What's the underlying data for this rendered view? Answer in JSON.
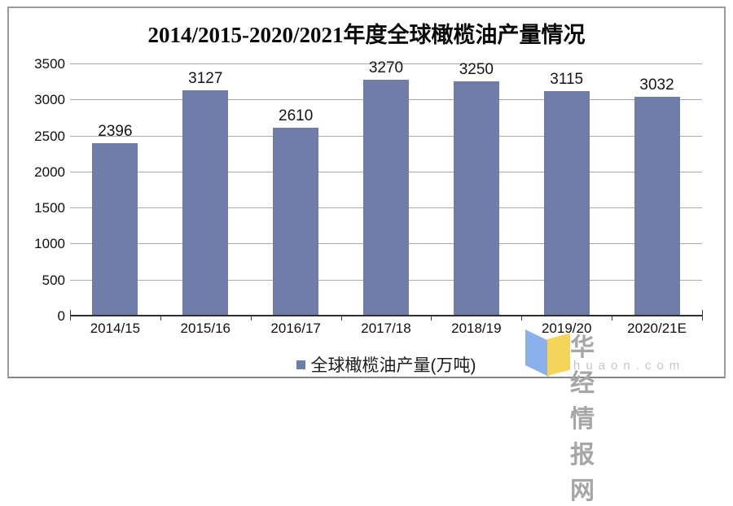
{
  "title": "2014/2015-2020/2021年度全球橄榄油产量情况",
  "chart_data": {
    "type": "bar",
    "title": "2014/2015-2020/2021年度全球橄榄油产量情况",
    "categories": [
      "2014/15",
      "2015/16",
      "2016/17",
      "2017/18",
      "2018/19",
      "2019/20",
      "2020/21E"
    ],
    "values": [
      2396,
      3127,
      2610,
      3270,
      3250,
      3115,
      3032
    ],
    "series_name": "全球橄榄油产量(万吨)",
    "data_labels": [
      2396,
      3127,
      2610,
      3270,
      3250,
      3115,
      3032
    ],
    "xlabel": "",
    "ylabel": "",
    "ylim": [
      0,
      3500
    ],
    "ytick_step": 500,
    "yticks": [
      0,
      500,
      1000,
      1500,
      2000,
      2500,
      3000,
      3500
    ],
    "grid": true,
    "legend_position": "bottom-center",
    "bar_color": "#6F7DA8"
  },
  "legend": {
    "label": "全球橄榄油产量(万吨)",
    "marker_color": "#6F7DA8"
  },
  "watermark": {
    "brand": "华经情报网",
    "domain": "huaon.com",
    "logo": "huaon-flag-logo",
    "logo_blue": "#8AB1EC",
    "logo_yellow": "#F4D459"
  },
  "colors": {
    "bar": "#6F7DA8",
    "gridline": "#A9A9A9",
    "axis": "#2E2E2E",
    "title_text": "#0A0A0A",
    "watermark_text": "#A6A6A6",
    "watermark_domain_text": "#C6C6C6"
  }
}
